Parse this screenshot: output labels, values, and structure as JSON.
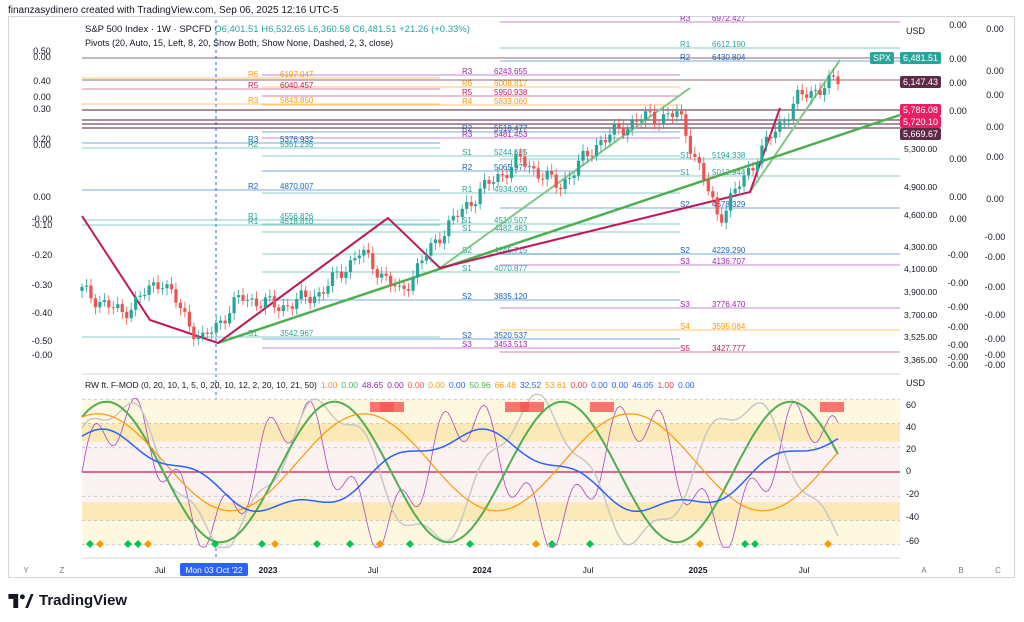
{
  "header": "finanzasydinero created with TradingView.com, Sep 06, 2025 12:16 UTC-5",
  "legend": {
    "symbol": "S&P 500 Index · 1W · SPCFD",
    "o_label": "O",
    "o": "6,401.51",
    "h_label": "H",
    "h": "6,532.65",
    "l_label": "L",
    "l": "6,360.58",
    "c_label": "C",
    "c": "6,481.51",
    "change": "+21.26 (+0.33%)",
    "pivots": "Pivots (20, Auto, 15, Left, 8, 20, Show Both, Show None, Dashed, 2, 3, close)"
  },
  "osc_legend": {
    "name": "RW ft. F-MOD (0, 20, 10, 1, 5, 0, 20, 10, 12, 2, 20, 10, 21, 50)",
    "values": [
      {
        "text": "1.00",
        "color": "#ff9800"
      },
      {
        "text": "0.00",
        "color": "#4caf50"
      },
      {
        "text": "48.65",
        "color": "#9c27b0"
      },
      {
        "text": "0.00",
        "color": "#9c27b0"
      },
      {
        "text": "0.00",
        "color": "#ff5252"
      },
      {
        "text": "0.00",
        "color": "#ff9800"
      },
      {
        "text": "0.00",
        "color": "#2962ff"
      },
      {
        "text": "50.96",
        "color": "#4caf50"
      },
      {
        "text": "66.48",
        "color": "#ff9800"
      },
      {
        "text": "32.52",
        "color": "#2962ff"
      },
      {
        "text": "53.61",
        "color": "#ff9800"
      },
      {
        "text": "0.00",
        "color": "#f23645"
      },
      {
        "text": "0.00",
        "color": "#2962ff"
      },
      {
        "text": "0.00",
        "color": "#2962ff"
      },
      {
        "text": "46.05",
        "color": "#2962ff"
      },
      {
        "text": "1.00",
        "color": "#f23645"
      },
      {
        "text": "0.00",
        "color": "#2962ff"
      }
    ]
  },
  "currency": "USD",
  "price_axis": [
    "5,300.00",
    "4,900.00",
    "4,600.00",
    "4,300.00",
    "4,100.00",
    "3,900.00",
    "3,700.00",
    "3,525.00",
    "3,365.00"
  ],
  "price_tags": [
    {
      "text": "SPX",
      "color": "#26a69a"
    },
    {
      "text": "6,481.51",
      "color": "#26a69a"
    },
    {
      "text": "6,147.43",
      "color": "#5d2b45"
    },
    {
      "text": "5,786.08",
      "color": "#e91e63"
    },
    {
      "text": "5,720.10",
      "color": "#e91e63"
    },
    {
      "text": "5,669.67",
      "color": "#5d2b45"
    }
  ],
  "left_axis": [
    "0.50",
    "0.00",
    "0.40",
    "0.00",
    "0.30",
    "0.20",
    "0.00",
    "0.00",
    "-0.00",
    "-0.10",
    "-0.20",
    "-0.30",
    "-0.40",
    "-0.50",
    "-0.00"
  ],
  "right_scale_a": [
    "0.00",
    "0.00",
    "0.00",
    "0.00",
    "0.00",
    "0.00",
    "0.00",
    "-0.00",
    "-0.00",
    "-0.00",
    "-0.00",
    "-0.00",
    "-0.00",
    "-0.00"
  ],
  "right_scale_b": [
    "0.00",
    "0.00",
    "0.00",
    "0.00",
    "0.00",
    "0.00",
    "-0.00",
    "-0.00",
    "-0.00",
    "-0.00",
    "-0.00",
    "-0.00",
    "-0.00"
  ],
  "osc_axis": [
    "USD",
    "60",
    "40",
    "20",
    "0",
    "-20",
    "-40",
    "-60"
  ],
  "time_axis": [
    "Jul",
    "Mon 03 Oct '22",
    "2023",
    "Jul",
    "2024",
    "Jul",
    "2025",
    "Jul"
  ],
  "corner_labels": [
    "Y",
    "Z",
    "A",
    "B",
    "C"
  ],
  "pivot_labels": [
    {
      "lvl": "R6",
      "val": "6197.047"
    },
    {
      "lvl": "R5",
      "val": "6040.457"
    },
    {
      "lvl": "R3",
      "val": "5843.850"
    },
    {
      "lvl": "R3",
      "val": "5376.932"
    },
    {
      "lvl": "R2",
      "val": "5351.235"
    },
    {
      "lvl": "R2",
      "val": "4870.007"
    },
    {
      "lvl": "R1",
      "val": "4556.826"
    },
    {
      "lvl": "R1",
      "val": "4518.810"
    },
    {
      "lvl": "S1",
      "val": "3542.967"
    },
    {
      "lvl": "R3",
      "val": "6243.655"
    },
    {
      "lvl": "R6",
      "val": "6008.817"
    },
    {
      "lvl": "R5",
      "val": "5950.938"
    },
    {
      "lvl": "R4",
      "val": "5833.060"
    },
    {
      "lvl": "R2",
      "val": "5518.477"
    },
    {
      "lvl": "R3",
      "val": "5481.453"
    },
    {
      "lvl": "S1",
      "val": "5244.685"
    },
    {
      "lvl": "R2",
      "val": "5065.977"
    },
    {
      "lvl": "R1",
      "val": "4934.090"
    },
    {
      "lvl": "S1",
      "val": "4510.507"
    },
    {
      "lvl": "S1",
      "val": "4482.483"
    },
    {
      "lvl": "S2",
      "val": "4245.715"
    },
    {
      "lvl": "S1",
      "val": "4070.877"
    },
    {
      "lvl": "S2",
      "val": "3835.120"
    },
    {
      "lvl": "S2",
      "val": "3520.537"
    },
    {
      "lvl": "S3",
      "val": "3453.513"
    },
    {
      "lvl": "R3",
      "val": "6972.427"
    },
    {
      "lvl": "R1",
      "val": "6612.190"
    },
    {
      "lvl": "R2",
      "val": "6430.804"
    },
    {
      "lvl": "S1",
      "val": "5194.338"
    },
    {
      "lvl": "S1",
      "val": "5012.944"
    },
    {
      "lvl": "S2",
      "val": "4678.329"
    },
    {
      "lvl": "S2",
      "val": "4229.290"
    },
    {
      "lvl": "S3",
      "val": "4136.707"
    },
    {
      "lvl": "S3",
      "val": "3776.470"
    },
    {
      "lvl": "S4",
      "val": "3595.084"
    },
    {
      "lvl": "S5",
      "val": "3427.777"
    }
  ],
  "colors": {
    "up": "#26a69a",
    "down": "#ef5350",
    "trend": "#4caf50",
    "zigzag": "#c2185b",
    "accent": "#2962ff"
  },
  "brand": "TradingView",
  "chart_data": {
    "type": "line",
    "title": "S&P 500 Index · 1W · SPCFD",
    "xlabel": "",
    "ylabel": "",
    "x": [
      "2022-05",
      "2022-07",
      "2022-08",
      "2022-10",
      "2022-12",
      "2023-02",
      "2023-04",
      "2023-07",
      "2023-10",
      "2023-12",
      "2024-03",
      "2024-07",
      "2024-08",
      "2024-10",
      "2024-12",
      "2025-02",
      "2025-04",
      "2025-05",
      "2025-07",
      "2025-09"
    ],
    "series": [
      {
        "name": "",
        "values": [
          4150,
          3900,
          4280,
          3585,
          4080,
          3970,
          4130,
          4580,
          4120,
          4770,
          5250,
          5600,
          5300,
          5800,
          6050,
          6100,
          4950,
          5650,
          6280,
          6481.51
        ]
      }
    ],
    "ylim": [
      3365,
      6700
    ],
    "oscillator": {
      "name": "RW ft. F-MOD",
      "levels": [
        60,
        40,
        20,
        0,
        -20,
        -40,
        -60
      ],
      "ylim": [
        -66,
        66
      ]
    }
  }
}
